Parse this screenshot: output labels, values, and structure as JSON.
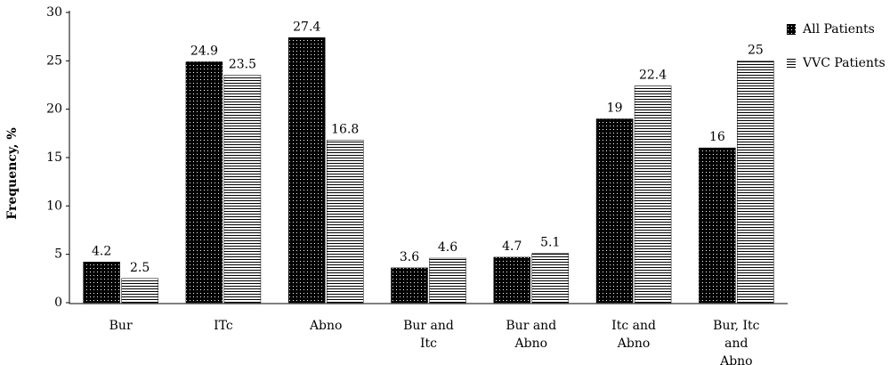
{
  "chart_data": {
    "type": "bar",
    "y_label": "Frequency, %",
    "categories": [
      "Bur",
      "ITc",
      "Abno",
      "Bur and Itc",
      "Bur and Abno",
      "Itc and Abno",
      "Bur, Itc and Abno"
    ],
    "series": [
      {
        "name": "All Patients",
        "color": "#000000",
        "pattern": "dots",
        "values": [
          4.2,
          24.9,
          27.4,
          3.6,
          4.7,
          19,
          16
        ]
      },
      {
        "name": "VVC Patients",
        "color": "#000000",
        "pattern": "lines",
        "values": [
          2.5,
          23.5,
          16.8,
          4.6,
          5.1,
          22.4,
          25
        ]
      }
    ],
    "ylim": [
      0,
      30
    ],
    "yticks": [
      0,
      5,
      10,
      15,
      20,
      25,
      30
    ],
    "legend": "top-right"
  }
}
